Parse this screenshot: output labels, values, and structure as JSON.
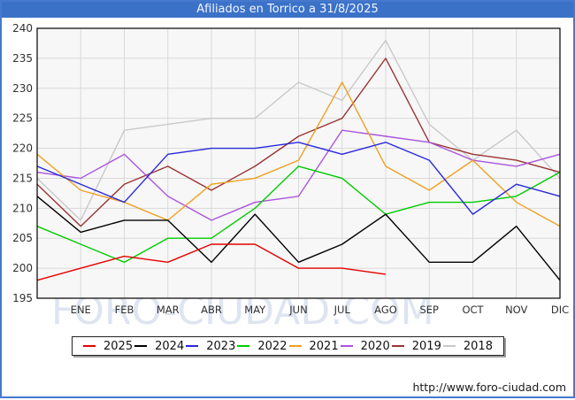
{
  "title": "Afiliados en Torrico a 31/8/2025",
  "watermark": "FORO-CIUDAD.COM",
  "footer": {
    "url": "http://www.foro-ciudad.com"
  },
  "colors": {
    "title_bar": "#3b72c8",
    "outer_border": "#4679ce",
    "plot_background": "#f7f7f7",
    "gridline": "#d9d9d9",
    "plot_border": "#000000",
    "axis_text": "#303030"
  },
  "chart_data": {
    "type": "line",
    "title": "Afiliados en Torrico a 31/8/2025",
    "xlabel": "",
    "ylabel": "",
    "ylim": [
      195,
      240
    ],
    "yticks": [
      195,
      200,
      205,
      210,
      215,
      220,
      225,
      230,
      235,
      240
    ],
    "grid": true,
    "legend_position": "bottom",
    "categories": [
      "ENE",
      "FEB",
      "MAR",
      "ABR",
      "MAY",
      "JUN",
      "JUL",
      "AGO",
      "SEP",
      "OCT",
      "NOV",
      "DIC"
    ],
    "note": "First value of each series is the unlabeled point on the left edge (December of the previous year); monthly values follow ENE..DIC. The 2025 series ends at AGO (data to 31/8/2025).",
    "series": [
      {
        "name": "2025",
        "color": "#e60000",
        "values": [
          198,
          200,
          202,
          201,
          204,
          204,
          200,
          200,
          199
        ]
      },
      {
        "name": "2024",
        "color": "#000000",
        "values": [
          212,
          206,
          208,
          208,
          201,
          209,
          201,
          204,
          209,
          201,
          201,
          207,
          198
        ]
      },
      {
        "name": "2023",
        "color": "#2929dd",
        "values": [
          217,
          214,
          211,
          219,
          220,
          220,
          221,
          219,
          221,
          218,
          209,
          214,
          212
        ]
      },
      {
        "name": "2022",
        "color": "#00cc00",
        "values": [
          207,
          204,
          201,
          205,
          205,
          210,
          217,
          215,
          209,
          211,
          211,
          212,
          216
        ]
      },
      {
        "name": "2021",
        "color": "#f0a020",
        "values": [
          219,
          213,
          211,
          208,
          214,
          215,
          218,
          231,
          217,
          213,
          218,
          211,
          207
        ]
      },
      {
        "name": "2020",
        "color": "#aa55dd",
        "values": [
          216,
          215,
          219,
          212,
          208,
          211,
          212,
          223,
          222,
          221,
          218,
          217,
          219
        ]
      },
      {
        "name": "2019",
        "color": "#9b3434",
        "values": [
          214,
          207,
          214,
          217,
          213,
          217,
          222,
          225,
          235,
          221,
          219,
          218,
          216
        ]
      },
      {
        "name": "2018",
        "color": "#c9c9c9",
        "values": [
          215,
          208,
          223,
          224,
          225,
          225,
          231,
          228,
          238,
          224,
          218,
          223,
          215
        ]
      }
    ]
  }
}
